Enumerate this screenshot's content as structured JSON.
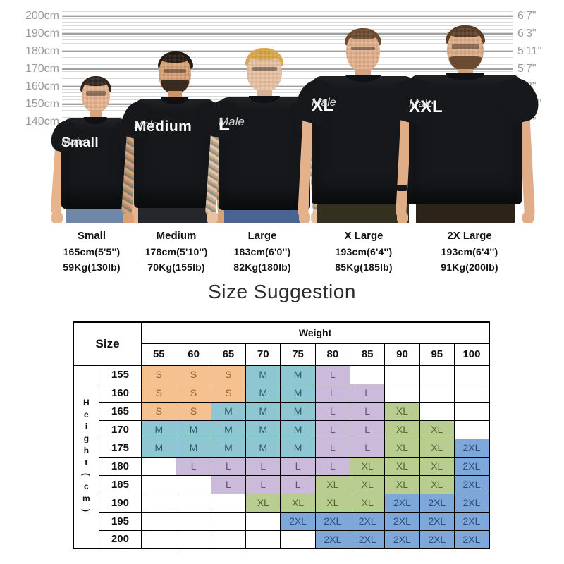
{
  "ruler": {
    "left_labels": [
      "200cm",
      "190cm",
      "180cm",
      "170cm",
      "160cm",
      "150cm",
      "140cm"
    ],
    "right_labels": [
      "6'7\"",
      "6'3\"",
      "5'11\"",
      "5'7\"",
      "5'3\"",
      "4'11\"",
      "4'7\""
    ]
  },
  "figures": [
    {
      "shirt_size": "Small",
      "shirt_gender": "Male",
      "label": "Small",
      "height": "165cm(5'5'')",
      "weight": "59Kg(130lb)"
    },
    {
      "shirt_size": "Medium",
      "shirt_gender": "Male",
      "label": "Medium",
      "height": "178cm(5'10'')",
      "weight": "70Kg(155lb)"
    },
    {
      "shirt_size": "L",
      "shirt_gender": "Male",
      "label": "Large",
      "height": "183cm(6'0'')",
      "weight": "82Kg(180lb)"
    },
    {
      "shirt_size": "XL",
      "shirt_gender": "Male",
      "label": "X Large",
      "height": "193cm(6'4'')",
      "weight": "85Kg(185lb)"
    },
    {
      "shirt_size": "XXL",
      "shirt_gender": "Male",
      "label": "2X Large",
      "height": "193cm(6'4'')",
      "weight": "91Kg(200lb)"
    }
  ],
  "suggestion": {
    "title": "Size Suggestion",
    "table": {
      "size_header": "Size",
      "weight_header": "Weight",
      "height_axis_label": "Height(cm)",
      "weights": [
        "55",
        "60",
        "65",
        "70",
        "75",
        "80",
        "85",
        "90",
        "95",
        "100"
      ],
      "rows": [
        {
          "height": "155",
          "cells": [
            "S",
            "S",
            "S",
            "M",
            "M",
            "L",
            "",
            "",
            "",
            ""
          ]
        },
        {
          "height": "160",
          "cells": [
            "S",
            "S",
            "S",
            "M",
            "M",
            "L",
            "L",
            "",
            "",
            ""
          ]
        },
        {
          "height": "165",
          "cells": [
            "S",
            "S",
            "M",
            "M",
            "M",
            "L",
            "L",
            "XL",
            "",
            ""
          ]
        },
        {
          "height": "170",
          "cells": [
            "M",
            "M",
            "M",
            "M",
            "M",
            "L",
            "L",
            "XL",
            "XL",
            ""
          ]
        },
        {
          "height": "175",
          "cells": [
            "M",
            "M",
            "M",
            "M",
            "M",
            "L",
            "L",
            "XL",
            "XL",
            "2XL"
          ]
        },
        {
          "height": "180",
          "cells": [
            "",
            "L",
            "L",
            "L",
            "L",
            "L",
            "XL",
            "XL",
            "XL",
            "2XL"
          ]
        },
        {
          "height": "185",
          "cells": [
            "",
            "",
            "L",
            "L",
            "L",
            "XL",
            "XL",
            "XL",
            "XL",
            "2XL"
          ]
        },
        {
          "height": "190",
          "cells": [
            "",
            "",
            "",
            "XL",
            "XL",
            "XL",
            "XL",
            "2XL",
            "2XL",
            "2XL"
          ]
        },
        {
          "height": "195",
          "cells": [
            "",
            "",
            "",
            "",
            "2XL",
            "2XL",
            "2XL",
            "2XL",
            "2XL",
            "2XL"
          ]
        },
        {
          "height": "200",
          "cells": [
            "",
            "",
            "",
            "",
            "",
            "2XL",
            "2XL",
            "2XL",
            "2XL",
            "2XL"
          ]
        }
      ],
      "size_colors": {
        "S": {
          "bg": "#f5c191",
          "text": "#9c5e2d"
        },
        "M": {
          "bg": "#8ec6d2",
          "text": "#2f5a66"
        },
        "L": {
          "bg": "#ccbadb",
          "text": "#66527a"
        },
        "XL": {
          "bg": "#b9cd90",
          "text": "#55663a"
        },
        "2XL": {
          "bg": "#7ea7da",
          "text": "#2e4d79"
        }
      }
    }
  },
  "chart_data": {
    "type": "table",
    "title": "Size Suggestion",
    "x_axis": {
      "label": "Weight",
      "ticks": [
        55,
        60,
        65,
        70,
        75,
        80,
        85,
        90,
        95,
        100
      ]
    },
    "y_axis": {
      "label": "Height(cm)",
      "ticks": [
        155,
        160,
        165,
        170,
        175,
        180,
        185,
        190,
        195,
        200
      ]
    },
    "cells": [
      [
        "S",
        "S",
        "S",
        "M",
        "M",
        "L",
        "",
        "",
        "",
        ""
      ],
      [
        "S",
        "S",
        "S",
        "M",
        "M",
        "L",
        "L",
        "",
        "",
        ""
      ],
      [
        "S",
        "S",
        "M",
        "M",
        "M",
        "L",
        "L",
        "XL",
        "",
        ""
      ],
      [
        "M",
        "M",
        "M",
        "M",
        "M",
        "L",
        "L",
        "XL",
        "XL",
        ""
      ],
      [
        "M",
        "M",
        "M",
        "M",
        "M",
        "L",
        "L",
        "XL",
        "XL",
        "2XL"
      ],
      [
        "",
        "L",
        "L",
        "L",
        "L",
        "L",
        "XL",
        "XL",
        "XL",
        "2XL"
      ],
      [
        "",
        "",
        "L",
        "L",
        "L",
        "XL",
        "XL",
        "XL",
        "XL",
        "2XL"
      ],
      [
        "",
        "",
        "",
        "XL",
        "XL",
        "XL",
        "XL",
        "2XL",
        "2XL",
        "2XL"
      ],
      [
        "",
        "",
        "",
        "",
        "2XL",
        "2XL",
        "2XL",
        "2XL",
        "2XL",
        "2XL"
      ],
      [
        "",
        "",
        "",
        "",
        "",
        "2XL",
        "2XL",
        "2XL",
        "2XL",
        "2XL"
      ]
    ],
    "legend": [
      {
        "size": "S",
        "color": "#f5c191"
      },
      {
        "size": "M",
        "color": "#8ec6d2"
      },
      {
        "size": "L",
        "color": "#ccbadb"
      },
      {
        "size": "XL",
        "color": "#b9cd90"
      },
      {
        "size": "2XL",
        "color": "#7ea7da"
      }
    ],
    "model_reference": [
      {
        "size": "Small",
        "height": "165cm(5'5'')",
        "weight": "59Kg(130lb)"
      },
      {
        "size": "Medium",
        "height": "178cm(5'10'')",
        "weight": "70Kg(155lb)"
      },
      {
        "size": "Large",
        "height": "183cm(6'0'')",
        "weight": "82Kg(180lb)"
      },
      {
        "size": "X Large",
        "height": "193cm(6'4'')",
        "weight": "85Kg(185lb)"
      },
      {
        "size": "2X Large",
        "height": "193cm(6'4'')",
        "weight": "91Kg(200lb)"
      }
    ],
    "height_scale_cm": [
      140,
      150,
      160,
      170,
      180,
      190,
      200
    ],
    "height_scale_ft": [
      "4'7\"",
      "4'11\"",
      "5'3\"",
      "5'7\"",
      "5'11\"",
      "6'3\"",
      "6'7\""
    ]
  }
}
